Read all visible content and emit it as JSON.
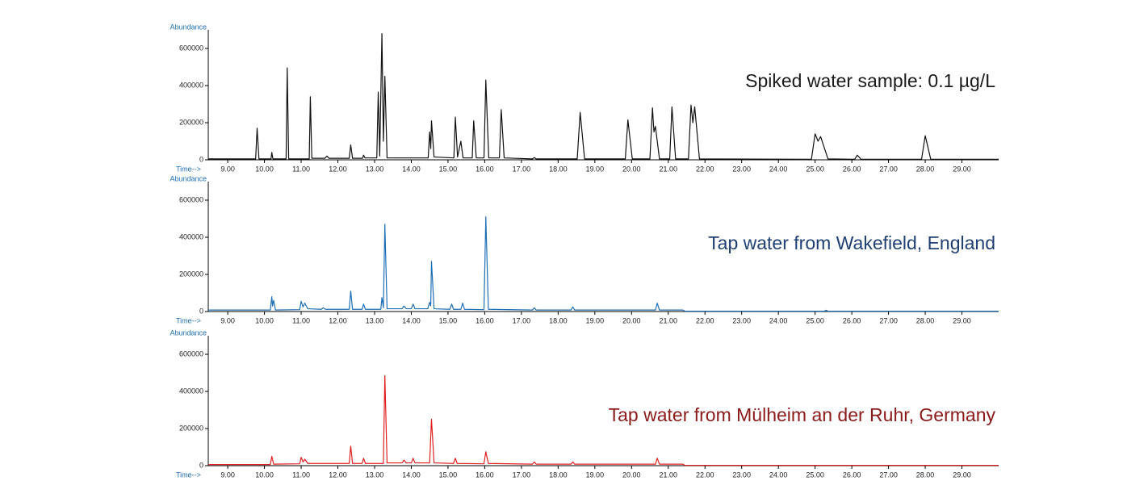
{
  "chart_data": [
    {
      "type": "line",
      "y_label": "Abundance",
      "x_label": "Time-->",
      "annotation": "Spiked water sample: 0.1 µg/L",
      "annotation_color": "#1a1a1a",
      "xlim": [
        8.47,
        30.0
      ],
      "ylim": [
        0,
        700000
      ],
      "yticks": [
        0,
        200000,
        400000,
        600000
      ],
      "xticks": [
        {
          "value": 9,
          "label": "9.00"
        },
        {
          "value": 10,
          "label": "10.00"
        },
        {
          "value": 11,
          "label": "11.00"
        },
        {
          "value": 12,
          "label": "12.00"
        },
        {
          "value": 13,
          "label": "13.00"
        },
        {
          "value": 14,
          "label": "14.00"
        },
        {
          "value": 15,
          "label": "15.00"
        },
        {
          "value": 16,
          "label": "16.00"
        },
        {
          "value": 17,
          "label": "17.00"
        },
        {
          "value": 18,
          "label": "18.00"
        },
        {
          "value": 19,
          "label": "19.00"
        },
        {
          "value": 20,
          "label": "20.00"
        },
        {
          "value": 21,
          "label": "21.00"
        },
        {
          "value": 22,
          "label": "22.00"
        },
        {
          "value": 23,
          "label": "23.00"
        },
        {
          "value": 24,
          "label": "24.00"
        },
        {
          "value": 25,
          "label": "25.00"
        },
        {
          "value": 26,
          "label": "26.00"
        },
        {
          "value": 27,
          "label": "27.00"
        },
        {
          "value": 28,
          "label": "28.00"
        },
        {
          "value": 29,
          "label": "29.00"
        }
      ],
      "x": [
        8.47,
        9.76,
        9.8,
        9.85,
        10.18,
        10.2,
        10.23,
        10.59,
        10.62,
        10.66,
        11.22,
        11.25,
        11.29,
        11.65,
        11.7,
        11.76,
        12.31,
        12.35,
        12.4,
        12.67,
        12.7,
        12.74,
        13.06,
        13.1,
        13.14,
        13.2,
        13.24,
        13.28,
        13.34,
        14.46,
        14.5,
        14.53,
        14.55,
        14.62,
        15.16,
        15.2,
        15.26,
        15.35,
        15.41,
        15.66,
        15.7,
        15.77,
        15.98,
        16.03,
        16.11,
        16.4,
        16.45,
        16.53,
        17.3,
        17.35,
        17.4,
        18.52,
        18.6,
        18.72,
        19.83,
        19.9,
        20.02,
        20.5,
        20.57,
        20.61,
        20.65,
        20.76,
        21.04,
        21.1,
        21.2,
        21.55,
        21.62,
        21.67,
        21.72,
        21.85,
        24.9,
        25.0,
        25.08,
        25.15,
        25.35,
        26.08,
        26.15,
        26.25,
        27.9,
        28.0,
        28.15,
        30.0
      ],
      "series": [
        {
          "color": "#111111",
          "values": [
            5000,
            5000,
            170000,
            5000,
            5000,
            40000,
            5000,
            5000,
            495000,
            5000,
            5000,
            340000,
            8000,
            8000,
            20000,
            8000,
            8000,
            80000,
            8000,
            8000,
            25000,
            10000,
            10000,
            365000,
            20000,
            680000,
            100000,
            450000,
            10000,
            10000,
            150000,
            60000,
            210000,
            15000,
            10000,
            230000,
            15000,
            100000,
            10000,
            10000,
            210000,
            10000,
            10000,
            430000,
            10000,
            10000,
            270000,
            10000,
            5000,
            12000,
            5000,
            5000,
            255000,
            5000,
            5000,
            215000,
            5000,
            5000,
            280000,
            150000,
            180000,
            5000,
            5000,
            285000,
            5000,
            5000,
            295000,
            200000,
            285000,
            5000,
            3000,
            140000,
            100000,
            125000,
            5000,
            3000,
            25000,
            3000,
            3000,
            130000,
            3000,
            3000
          ]
        }
      ]
    },
    {
      "type": "line",
      "y_label": "Abundance",
      "x_label": "Time-->",
      "annotation": "Tap water from Wakefield, England",
      "annotation_color": "#1f3f73",
      "xlim": [
        8.47,
        30.0
      ],
      "ylim": [
        0,
        700000
      ],
      "yticks": [
        0,
        200000,
        400000,
        600000
      ],
      "xticks": [
        {
          "value": 9,
          "label": "9.00"
        },
        {
          "value": 10,
          "label": "10.00"
        },
        {
          "value": 11,
          "label": "11.00"
        },
        {
          "value": 12,
          "label": "12.00"
        },
        {
          "value": 13,
          "label": "13.00"
        },
        {
          "value": 14,
          "label": "14.00"
        },
        {
          "value": 15,
          "label": "15.00"
        },
        {
          "value": 16,
          "label": "16.00"
        },
        {
          "value": 17,
          "label": "17.00"
        },
        {
          "value": 18,
          "label": "18.00"
        },
        {
          "value": 19,
          "label": "19.00"
        },
        {
          "value": 20,
          "label": "20.00"
        },
        {
          "value": 21,
          "label": "21.00"
        },
        {
          "value": 22,
          "label": "22.00"
        },
        {
          "value": 23,
          "label": "23.00"
        },
        {
          "value": 24,
          "label": "24.00"
        },
        {
          "value": 25,
          "label": "25.00"
        },
        {
          "value": 26,
          "label": "26.00"
        },
        {
          "value": 27,
          "label": "27.00"
        },
        {
          "value": 28,
          "label": "28.00"
        },
        {
          "value": 29,
          "label": "29.00"
        }
      ],
      "x": [
        8.47,
        10.16,
        10.2,
        10.22,
        10.25,
        10.3,
        10.96,
        11.0,
        11.05,
        11.1,
        11.18,
        11.55,
        11.6,
        11.66,
        12.31,
        12.35,
        12.4,
        12.66,
        12.7,
        12.75,
        13.17,
        13.2,
        13.24,
        13.28,
        13.34,
        13.75,
        13.8,
        13.86,
        14.0,
        14.05,
        14.1,
        14.45,
        14.5,
        14.53,
        14.55,
        14.62,
        15.05,
        15.1,
        15.15,
        15.35,
        15.4,
        15.45,
        15.98,
        16.03,
        16.1,
        17.3,
        17.35,
        17.4,
        18.35,
        18.4,
        18.45,
        20.65,
        20.7,
        20.76,
        21.4,
        21.45,
        25.25,
        25.3,
        25.35,
        30.0
      ],
      "series": [
        {
          "color": "#1e6fb5",
          "values": [
            8000,
            8000,
            80000,
            30000,
            60000,
            8000,
            10000,
            55000,
            25000,
            45000,
            15000,
            12000,
            20000,
            12000,
            12000,
            110000,
            12000,
            12000,
            40000,
            12000,
            12000,
            75000,
            20000,
            470000,
            15000,
            15000,
            30000,
            15000,
            15000,
            40000,
            15000,
            15000,
            50000,
            30000,
            270000,
            15000,
            12000,
            40000,
            12000,
            12000,
            45000,
            12000,
            10000,
            510000,
            12000,
            8000,
            20000,
            8000,
            8000,
            25000,
            8000,
            8000,
            45000,
            8000,
            8000,
            2000,
            2000,
            7000,
            2000,
            2000
          ]
        }
      ]
    },
    {
      "type": "line",
      "y_label": "Abundance",
      "x_label": "Time-->",
      "annotation": "Tap water from Mülheim an der Ruhr, Germany",
      "annotation_color": "#8b1a1a",
      "xlim": [
        8.47,
        30.0
      ],
      "ylim": [
        0,
        700000
      ],
      "yticks": [
        0,
        200000,
        400000,
        600000
      ],
      "xticks": [
        {
          "value": 9,
          "label": "9.00"
        },
        {
          "value": 10,
          "label": "10.00"
        },
        {
          "value": 11,
          "label": "11.00"
        },
        {
          "value": 12,
          "label": "12.00"
        },
        {
          "value": 13,
          "label": "13.00"
        },
        {
          "value": 14,
          "label": "14.00"
        },
        {
          "value": 15,
          "label": "15.00"
        },
        {
          "value": 16,
          "label": "16.00"
        },
        {
          "value": 17,
          "label": "17.00"
        },
        {
          "value": 18,
          "label": "18.00"
        },
        {
          "value": 19,
          "label": "19.00"
        },
        {
          "value": 20,
          "label": "20.00"
        },
        {
          "value": 21,
          "label": "21.00"
        },
        {
          "value": 22,
          "label": "22.00"
        },
        {
          "value": 23,
          "label": "23.00"
        },
        {
          "value": 24,
          "label": "24.00"
        },
        {
          "value": 25,
          "label": "25.00"
        },
        {
          "value": 26,
          "label": "26.00"
        },
        {
          "value": 27,
          "label": "27.00"
        },
        {
          "value": 28,
          "label": "28.00"
        },
        {
          "value": 29,
          "label": "29.00"
        }
      ],
      "x": [
        8.47,
        10.16,
        10.2,
        10.25,
        10.96,
        11.0,
        11.05,
        11.1,
        11.18,
        12.31,
        12.35,
        12.4,
        12.66,
        12.7,
        12.75,
        13.24,
        13.28,
        13.34,
        13.75,
        13.8,
        13.86,
        14.0,
        14.05,
        14.1,
        14.5,
        14.55,
        14.62,
        15.15,
        15.2,
        15.25,
        15.98,
        16.03,
        16.1,
        17.3,
        17.35,
        17.4,
        18.35,
        18.4,
        18.45,
        20.65,
        20.7,
        20.76,
        21.4,
        21.45,
        30.0
      ],
      "series": [
        {
          "color": "#e02020",
          "values": [
            6000,
            6000,
            50000,
            8000,
            10000,
            45000,
            20000,
            35000,
            12000,
            12000,
            105000,
            12000,
            12000,
            40000,
            12000,
            12000,
            485000,
            15000,
            15000,
            30000,
            15000,
            15000,
            40000,
            15000,
            15000,
            250000,
            15000,
            12000,
            40000,
            12000,
            10000,
            75000,
            12000,
            8000,
            20000,
            8000,
            8000,
            20000,
            8000,
            8000,
            40000,
            8000,
            8000,
            2000,
            2000
          ]
        }
      ]
    }
  ]
}
